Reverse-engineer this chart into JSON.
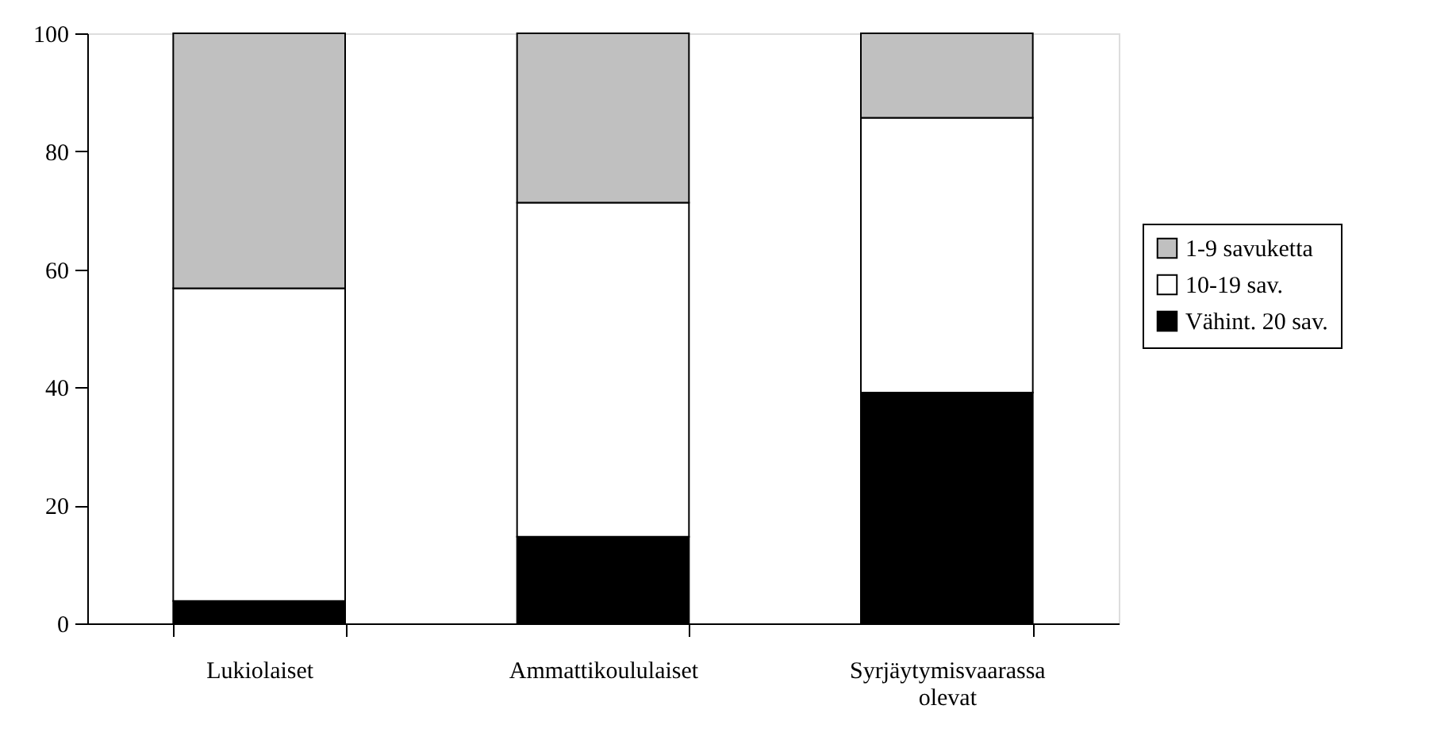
{
  "chart_data": {
    "type": "bar",
    "stacked": true,
    "categories": [
      "Lukiolaiset",
      "Ammattikoululaiset",
      "Syrjäytymisvaarassa olevat"
    ],
    "series": [
      {
        "name": "Vähint. 20 sav.",
        "color": "#000000",
        "values": [
          3.8,
          14.7,
          39.1
        ]
      },
      {
        "name": "10-19 sav.",
        "color": "#ffffff",
        "values": [
          53.0,
          56.6,
          46.6
        ]
      },
      {
        "name": "1-9 savuketta",
        "color": "#c0c0c0",
        "values": [
          43.2,
          28.7,
          14.3
        ]
      }
    ],
    "ylim": [
      0,
      100
    ],
    "yticks": [
      0,
      20,
      40,
      60,
      80,
      100
    ],
    "grid": false,
    "legend": "right"
  }
}
